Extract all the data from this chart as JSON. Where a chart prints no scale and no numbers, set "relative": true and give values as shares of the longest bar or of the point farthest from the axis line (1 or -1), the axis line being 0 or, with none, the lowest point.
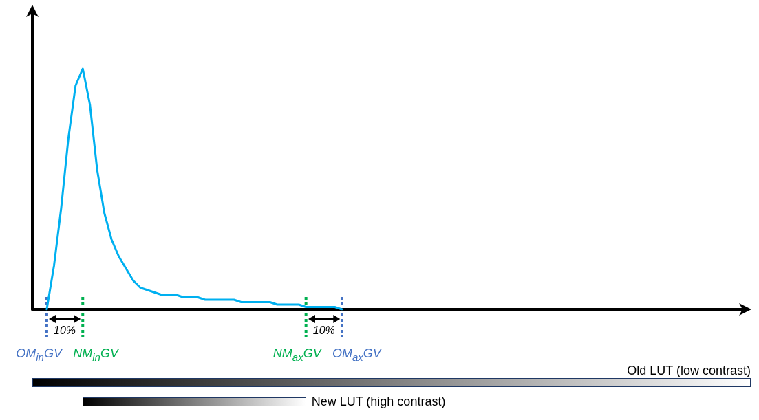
{
  "chart_data": {
    "type": "line",
    "relative": true,
    "grid": false,
    "marker": "none",
    "line_style": "solid",
    "categories": [
      null,
      null,
      null,
      null,
      null,
      null,
      null,
      null,
      null,
      null,
      null,
      null,
      null,
      null,
      null,
      null,
      null,
      null,
      null,
      null,
      null,
      null,
      null,
      null,
      null,
      null,
      null,
      null,
      null,
      null,
      null,
      null,
      null,
      null,
      null,
      null,
      null,
      null,
      null,
      null,
      null,
      null,
      null,
      null,
      null,
      null,
      null,
      null,
      null,
      null,
      null,
      null,
      null,
      null,
      null,
      null,
      null,
      null,
      null,
      null,
      null,
      null,
      null,
      null,
      null,
      null,
      null,
      null,
      null,
      null,
      null,
      null,
      null,
      null,
      null,
      null,
      null,
      null,
      null,
      null,
      null,
      null,
      null,
      null,
      null,
      null,
      null,
      null,
      null,
      null,
      null,
      null,
      null,
      null,
      null,
      null,
      null,
      null,
      null,
      null
    ],
    "series": [
      {
        "color": "#00b0f0",
        "values": [
          null,
          null,
          0,
          0.18,
          0.42,
          0.71,
          0.93,
          1,
          0.85,
          0.58,
          0.4,
          0.29,
          0.22,
          0.17,
          0.12,
          0.09,
          0.08,
          0.07,
          0.06,
          0.06,
          0.06,
          0.05,
          0.05,
          0.05,
          0.04,
          0.04,
          0.04,
          0.04,
          0.04,
          0.03,
          0.03,
          0.03,
          0.03,
          0.03,
          0.02,
          0.02,
          0.02,
          0.02,
          0.01,
          0.01,
          0.01,
          0.01,
          0.01,
          0,
          null,
          null,
          null,
          null,
          null,
          null,
          null,
          null,
          null,
          null,
          null,
          null,
          null,
          null,
          null,
          null,
          null,
          null,
          null,
          null,
          null,
          null,
          null,
          null,
          null,
          null,
          null,
          null,
          null,
          null,
          null,
          null,
          null,
          null,
          null,
          null,
          null,
          null,
          null,
          null,
          null,
          null,
          null,
          null,
          null,
          null,
          null,
          null,
          null,
          null,
          null,
          null,
          null,
          null,
          null,
          null
        ]
      }
    ],
    "ref_lines": [
      {
        "axis": "x",
        "label": "OM$_{in}$GV",
        "color": "#4472c4",
        "line_style": "dotted"
      },
      {
        "axis": "x",
        "label": "NM$_{in}$GV",
        "color": "#00b050",
        "line_style": "dotted"
      },
      {
        "axis": "x",
        "label": "NM$_{ax}$GV",
        "color": "#00b050",
        "line_style": "dotted"
      },
      {
        "axis": "x",
        "label": "OM$_{ax}$GV",
        "color": "#4472c4",
        "line_style": "dotted"
      }
    ],
    "annotations": [
      {
        "text": "10%"
      },
      {
        "text": "10%"
      },
      "Old LUT (low contrast)",
      "New LUT (high contrast)"
    ]
  }
}
